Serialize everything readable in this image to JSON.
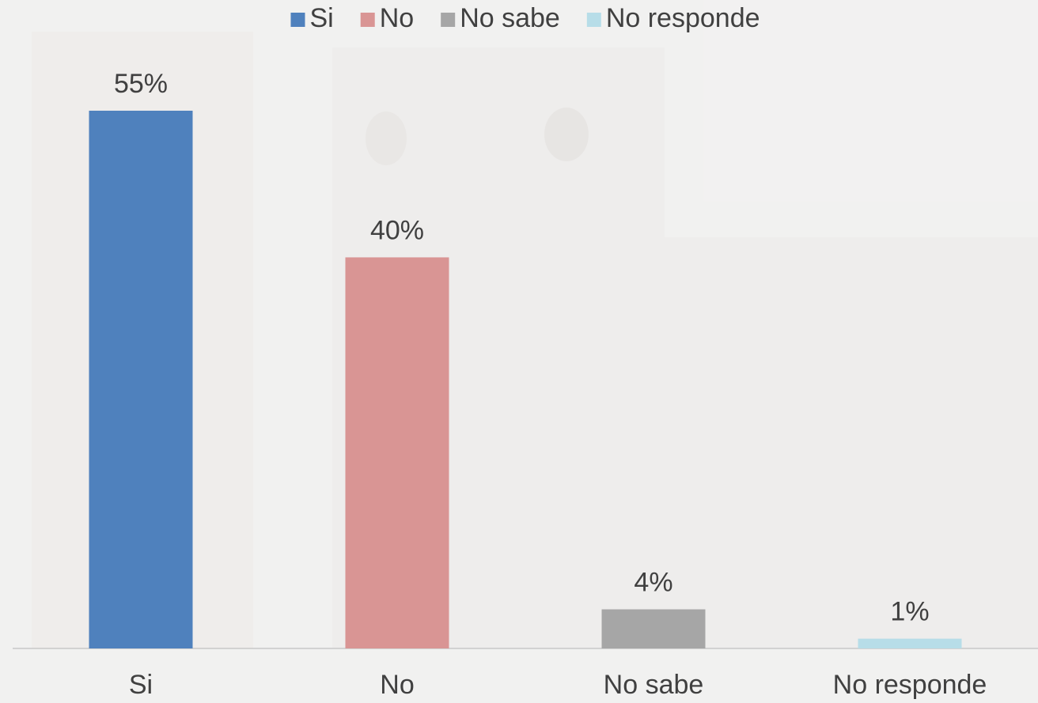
{
  "chart_data": {
    "type": "bar",
    "categories": [
      "Si",
      "No",
      "No sabe",
      "No responde"
    ],
    "values": [
      55,
      40,
      4,
      1
    ],
    "value_labels": [
      "55%",
      "40%",
      "4%",
      "1%"
    ],
    "colors": [
      "#4f81bd",
      "#d99594",
      "#a6a6a6",
      "#b7dde8"
    ],
    "legend": "top"
  }
}
